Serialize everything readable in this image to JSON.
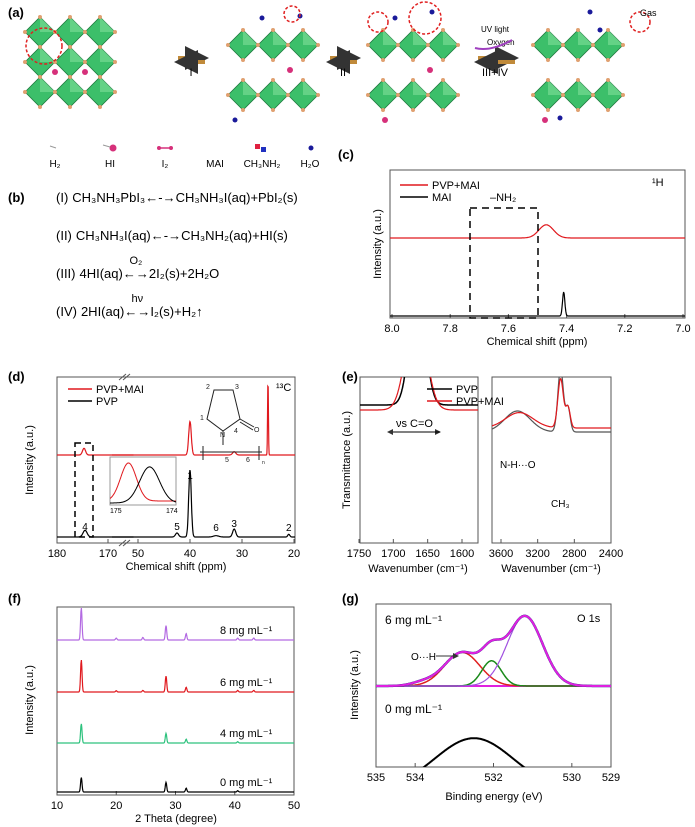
{
  "panel_labels": {
    "a": "(a)",
    "b": "(b)",
    "c": "(c)",
    "d": "(d)",
    "e": "(e)",
    "f": "(f)",
    "g": "(g)"
  },
  "panel_a": {
    "steps": [
      "I",
      "II",
      "III+IV"
    ],
    "uv_light": "UV light",
    "oxygen": "Oxygen",
    "gas": "Gas",
    "legend": [
      "H₂",
      "HI",
      "I₂",
      "MAI",
      "CH₃NH₂",
      "H₂O"
    ],
    "colors": {
      "octahedron": "#3cbf6a",
      "vertex": "#e0a070",
      "hi": "#d6307a",
      "highlight": "#e02020"
    }
  },
  "panel_b": {
    "equations": [
      {
        "num": "(I)",
        "left": "CH₃NH₃PbI₃",
        "arrow": "←-→",
        "over": "",
        "right": "CH₃NH₃I(aq)+PbI₂(s)"
      },
      {
        "num": "(II)",
        "left": "CH₃NH₃I(aq)",
        "arrow": "←-→",
        "over": "",
        "right": "CH₃NH₂(aq)+HI(s)"
      },
      {
        "num": "(III)",
        "left": "4HI(aq)",
        "arrow": "←→",
        "over": "O₂",
        "right": "2I₂(s)+2H₂O"
      },
      {
        "num": "(IV)",
        "left": "2HI(aq)",
        "arrow": "←→",
        "over": "hν",
        "right": "I₂(s)+H₂↑"
      }
    ]
  },
  "chart_data": [
    {
      "panel": "c",
      "type": "line",
      "xlabel": "Chemical shift (ppm)",
      "ylabel": "Intensity (a.u.)",
      "xlim": [
        8.0,
        7.0
      ],
      "xticks": [
        "8.0",
        "7.8",
        "7.6",
        "7.4",
        "7.2",
        "7.0"
      ],
      "xtick_values": [
        8.0,
        7.8,
        7.6,
        7.4,
        7.2,
        7.0
      ],
      "nucleus": "¹H",
      "annotation": "–NH₂",
      "highlight_range": [
        7.6,
        7.3
      ],
      "legend": "top-left",
      "series": [
        {
          "name": "PVP+MAI",
          "color": "#e0191e",
          "peaks": [
            {
              "x": 7.47,
              "height": 0.55,
              "width": 0.025
            }
          ]
        },
        {
          "name": "MAI",
          "color": "#000000",
          "peaks": [
            {
              "x": 7.41,
              "height": 1.0,
              "width": 0.004
            }
          ]
        }
      ]
    },
    {
      "panel": "d",
      "type": "line",
      "xlabel": "Chemical shift (ppm)",
      "ylabel": "Intensity (a.u.)",
      "xticks": [
        "180",
        "170",
        "50",
        "40",
        "30",
        "20"
      ],
      "xtick_values": [
        180,
        170,
        50,
        40,
        30,
        20
      ],
      "axis_break": [
        170,
        50
      ],
      "nucleus": "¹³C",
      "legend": "top-left",
      "structure_labels": [
        "1",
        "2",
        "3",
        "4",
        "O",
        "N",
        "5",
        "6",
        "n",
        "H",
        "H₂",
        "C",
        "C"
      ],
      "peak_labels": [
        {
          "label": "1",
          "x": 40
        },
        {
          "label": "2",
          "x": 21
        },
        {
          "label": "3",
          "x": 31.5
        },
        {
          "label": "4",
          "x": 174.5
        },
        {
          "label": "5",
          "x": 42.5
        },
        {
          "label": "6",
          "x": 35
        }
      ],
      "inset": {
        "xticks": [
          "175",
          "174"
        ],
        "xlim": [
          175,
          174
        ],
        "series": [
          {
            "name": "PVP+MAI",
            "peaks": [
              {
                "x": 174.72,
                "height": 1.0,
                "width": 0.12
              }
            ]
          },
          {
            "name": "PVP",
            "peaks": [
              {
                "x": 174.4,
                "height": 0.95,
                "width": 0.15
              }
            ]
          }
        ]
      },
      "series": [
        {
          "name": "PVP+MAI",
          "color": "#e0191e",
          "peaks": [
            {
              "x": 174.7,
              "height": 0.1,
              "width": 0.3
            },
            {
              "x": 40,
              "height": 0.5,
              "width": 0.25
            },
            {
              "x": 31.5,
              "height": 0.05,
              "width": 0.3
            },
            {
              "x": 25,
              "height": 1.1,
              "width": 0.08
            }
          ]
        },
        {
          "name": "PVP",
          "color": "#000000",
          "peaks": [
            {
              "x": 174.5,
              "height": 0.1,
              "width": 0.4
            },
            {
              "x": 42.5,
              "height": 0.06,
              "width": 0.3
            },
            {
              "x": 40,
              "height": 1.0,
              "width": 0.25
            },
            {
              "x": 35,
              "height": 0.02,
              "width": 0.5
            },
            {
              "x": 31.5,
              "height": 0.12,
              "width": 0.3
            },
            {
              "x": 21,
              "height": 0.04,
              "width": 0.2
            }
          ]
        }
      ]
    },
    {
      "panel": "e-left",
      "type": "line",
      "xlabel": "Wavenumber (cm⁻¹)",
      "ylabel": "Transmittance (a.u.)",
      "xticks": [
        "1750",
        "1700",
        "1650",
        "1600"
      ],
      "xtick_values": [
        1750,
        1700,
        1650,
        1600
      ],
      "xlim": [
        1750,
        1580
      ],
      "annotation": "νs C=O",
      "legend": "top-right",
      "series": [
        {
          "name": "PVP",
          "color": "#000000",
          "peaks": [
            {
              "x": 1665,
              "height": 1.0,
              "width": 11
            }
          ]
        },
        {
          "name": "PVP+MAI",
          "color": "#e0191e",
          "peaks": [
            {
              "x": 1667,
              "height": 0.88,
              "width": 14
            }
          ]
        }
      ]
    },
    {
      "panel": "e-right",
      "type": "line",
      "xlabel": "Wavenumber (cm⁻¹)",
      "xticks": [
        "3600",
        "3200",
        "2800",
        "2400"
      ],
      "xtick_values": [
        3600,
        3200,
        2800,
        2400
      ],
      "xlim": [
        3700,
        2400
      ],
      "annotations": [
        "N-H···O",
        "CH₃"
      ],
      "series": [
        {
          "name": "PVP",
          "color": "#555555",
          "peaks": [
            {
              "x": 3420,
              "height": 0.3,
              "width": 140
            },
            {
              "x": 2950,
              "height": 0.9,
              "width": 30
            },
            {
              "x": 2870,
              "height": 0.35,
              "width": 25
            }
          ]
        },
        {
          "name": "PVP+MAI",
          "color": "#e0191e",
          "peaks": [
            {
              "x": 3400,
              "height": 0.22,
              "width": 150
            },
            {
              "x": 2950,
              "height": 0.7,
              "width": 30
            },
            {
              "x": 2870,
              "height": 0.3,
              "width": 25
            }
          ]
        }
      ]
    },
    {
      "panel": "f",
      "type": "line",
      "xlabel": "2 Theta (degree)",
      "ylabel": "Intensity (a.u.)",
      "xlim": [
        10,
        50
      ],
      "xticks": [
        "10",
        "20",
        "30",
        "40",
        "50"
      ],
      "xtick_values": [
        10,
        20,
        30,
        40,
        50
      ],
      "series": [
        {
          "name": "8 mg mL⁻¹",
          "color": "#b36ae2",
          "peaks": [
            {
              "x": 14.1,
              "height": 1.0,
              "width": 0.12
            },
            {
              "x": 20.0,
              "height": 0.06,
              "width": 0.12
            },
            {
              "x": 24.5,
              "height": 0.08,
              "width": 0.12
            },
            {
              "x": 28.4,
              "height": 0.45,
              "width": 0.12
            },
            {
              "x": 31.8,
              "height": 0.2,
              "width": 0.12
            },
            {
              "x": 40.5,
              "height": 0.06,
              "width": 0.12
            },
            {
              "x": 43.2,
              "height": 0.06,
              "width": 0.12
            }
          ]
        },
        {
          "name": "6 mg mL⁻¹",
          "color": "#e0191e",
          "peaks": [
            {
              "x": 14.1,
              "height": 1.0,
              "width": 0.12
            },
            {
              "x": 20.0,
              "height": 0.04,
              "width": 0.12
            },
            {
              "x": 24.5,
              "height": 0.05,
              "width": 0.12
            },
            {
              "x": 28.4,
              "height": 0.5,
              "width": 0.12
            },
            {
              "x": 31.8,
              "height": 0.15,
              "width": 0.12
            },
            {
              "x": 40.5,
              "height": 0.05,
              "width": 0.12
            },
            {
              "x": 43.2,
              "height": 0.05,
              "width": 0.12
            }
          ]
        },
        {
          "name": "4 mg mL⁻¹",
          "color": "#2ec27e",
          "peaks": [
            {
              "x": 14.1,
              "height": 0.6,
              "width": 0.12
            },
            {
              "x": 28.4,
              "height": 0.3,
              "width": 0.12
            },
            {
              "x": 31.8,
              "height": 0.12,
              "width": 0.12
            },
            {
              "x": 40.5,
              "height": 0.04,
              "width": 0.12
            }
          ]
        },
        {
          "name": "0 mg mL⁻¹",
          "color": "#000000",
          "peaks": [
            {
              "x": 14.1,
              "height": 0.45,
              "width": 0.12
            },
            {
              "x": 28.4,
              "height": 0.3,
              "width": 0.12
            },
            {
              "x": 31.8,
              "height": 0.12,
              "width": 0.12
            },
            {
              "x": 40.5,
              "height": 0.04,
              "width": 0.12
            }
          ]
        }
      ]
    },
    {
      "panel": "g",
      "type": "line",
      "xlabel": "Binding energy (eV)",
      "ylabel": "Intensity (a.u.)",
      "xlim": [
        535,
        529
      ],
      "xticks": [
        "535",
        "534",
        "532",
        "530",
        "529"
      ],
      "xtick_values": [
        535,
        534,
        532,
        530,
        529
      ],
      "title": "O 1s",
      "annotation": "O···H",
      "series": [
        {
          "name": "6 mg mL⁻¹ fit O···H",
          "color": "#e02020",
          "peaks": [
            {
              "x": 532.8,
              "height": 0.48,
              "width": 0.45
            }
          ]
        },
        {
          "name": "6 mg mL⁻¹ fit 2",
          "color": "#1a8a1a",
          "peaks": [
            {
              "x": 532.05,
              "height": 0.36,
              "width": 0.25
            }
          ]
        },
        {
          "name": "6 mg mL⁻¹ fit 3",
          "color": "#a050e0",
          "peaks": [
            {
              "x": 531.2,
              "height": 1.0,
              "width": 0.45
            }
          ]
        },
        {
          "name": "6 mg mL⁻¹",
          "color": "#e020e0",
          "peaks": [
            {
              "x": 533.8,
              "height": 0.05,
              "width": 0.3
            },
            {
              "x": 532.8,
              "height": 0.48,
              "width": 0.45
            },
            {
              "x": 532.05,
              "height": 0.36,
              "width": 0.25
            },
            {
              "x": 531.2,
              "height": 1.0,
              "width": 0.45
            }
          ]
        },
        {
          "name": "0 mg mL⁻¹",
          "color": "#000000",
          "peaks": [
            {
              "x": 532.5,
              "height": 0.74,
              "width": 1.0
            }
          ]
        }
      ]
    }
  ]
}
